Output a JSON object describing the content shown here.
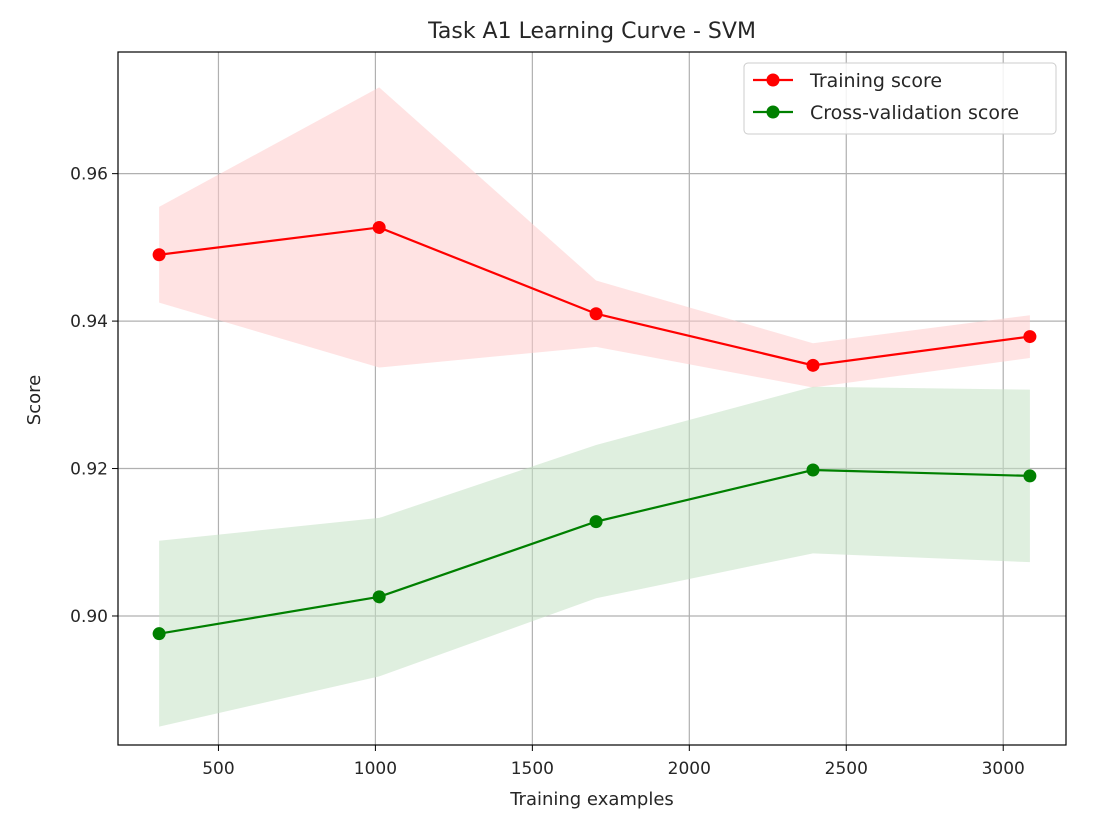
{
  "chart_data": {
    "type": "line",
    "title": "Task A1 Learning Curve - SVM",
    "xlabel": "Training examples",
    "ylabel": "Score",
    "xlim": [
      180,
      3200
    ],
    "ylim": [
      0.8825,
      0.9765
    ],
    "xticks": [
      500,
      1000,
      1500,
      2000,
      2500,
      3000
    ],
    "xtick_labels": [
      "500",
      "1000",
      "1500",
      "2000",
      "2500",
      "3000"
    ],
    "yticks": [
      0.9,
      0.92,
      0.94,
      0.96
    ],
    "ytick_labels": [
      "0.90",
      "0.92",
      "0.94",
      "0.96"
    ],
    "grid": true,
    "legend_position": "top-right",
    "x": [
      311,
      1012,
      1703,
      2394,
      3085
    ],
    "series": [
      {
        "name": "Training score",
        "color": "#ff0000",
        "band_color": "#ffcccc",
        "values": [
          0.949,
          0.9527,
          0.941,
          0.934,
          0.9379
        ],
        "band_lower": [
          0.9425,
          0.9337,
          0.9365,
          0.931,
          0.935
        ],
        "band_upper": [
          0.9555,
          0.9717,
          0.9455,
          0.937,
          0.9408
        ]
      },
      {
        "name": "Cross-validation score",
        "color": "#008000",
        "band_color": "#c4e2c4",
        "values": [
          0.8976,
          0.9026,
          0.9128,
          0.9198,
          0.919
        ],
        "band_lower": [
          0.885,
          0.8918,
          0.9024,
          0.9085,
          0.9073
        ],
        "band_upper": [
          0.9102,
          0.9133,
          0.9232,
          0.9311,
          0.9307
        ]
      }
    ]
  }
}
